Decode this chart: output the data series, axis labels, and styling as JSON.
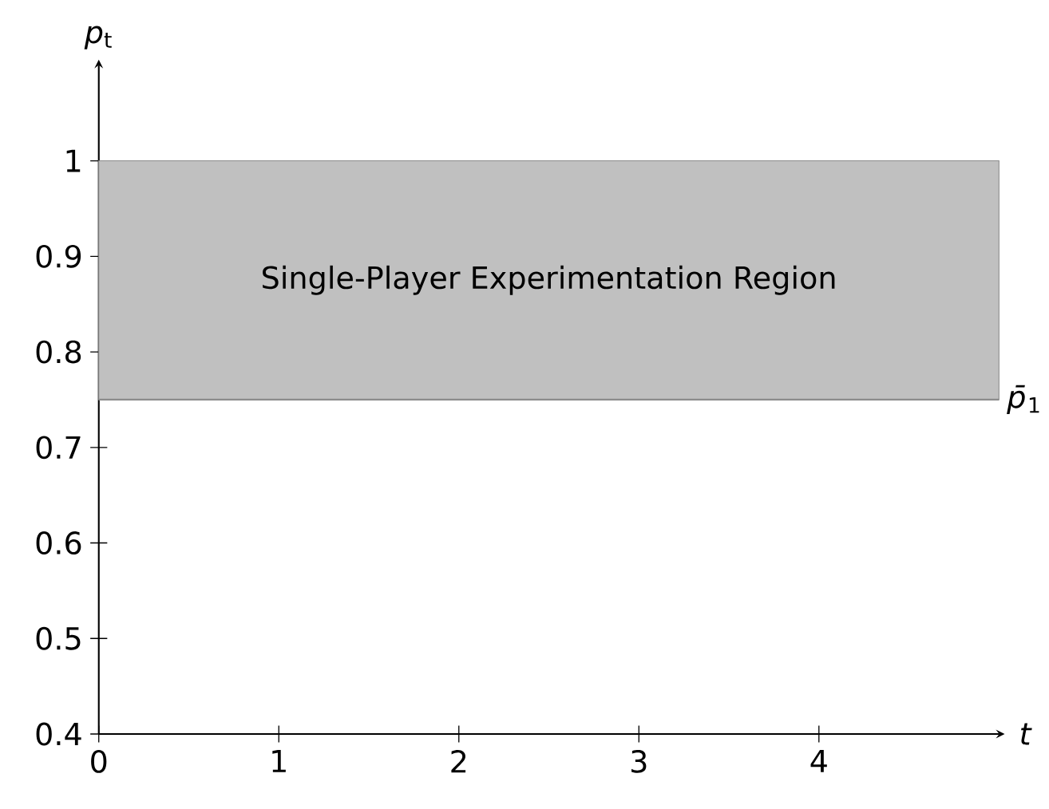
{
  "chart_data": {
    "type": "line",
    "xlabel": "*t*",
    "ylabel": "*p*$_{t}$",
    "xlim": [
      0,
      5
    ],
    "ylim": [
      0.4,
      1.1
    ],
    "xticks": [
      0,
      1,
      2,
      3,
      4
    ],
    "yticks": [
      0.4,
      0.5,
      0.6,
      0.7,
      0.8,
      0.9,
      1
    ],
    "bands": [
      {
        "axis": "y",
        "from": 0.75,
        "to": 1,
        "label": "Single-Player Experimentation Region",
        "color": "#c0c0c0"
      }
    ],
    "ref_lines": [
      {
        "axis": "y",
        "value": 0.75,
        "label": "*p̄*$_{1}$",
        "color": "#8c8c8c"
      }
    ]
  }
}
